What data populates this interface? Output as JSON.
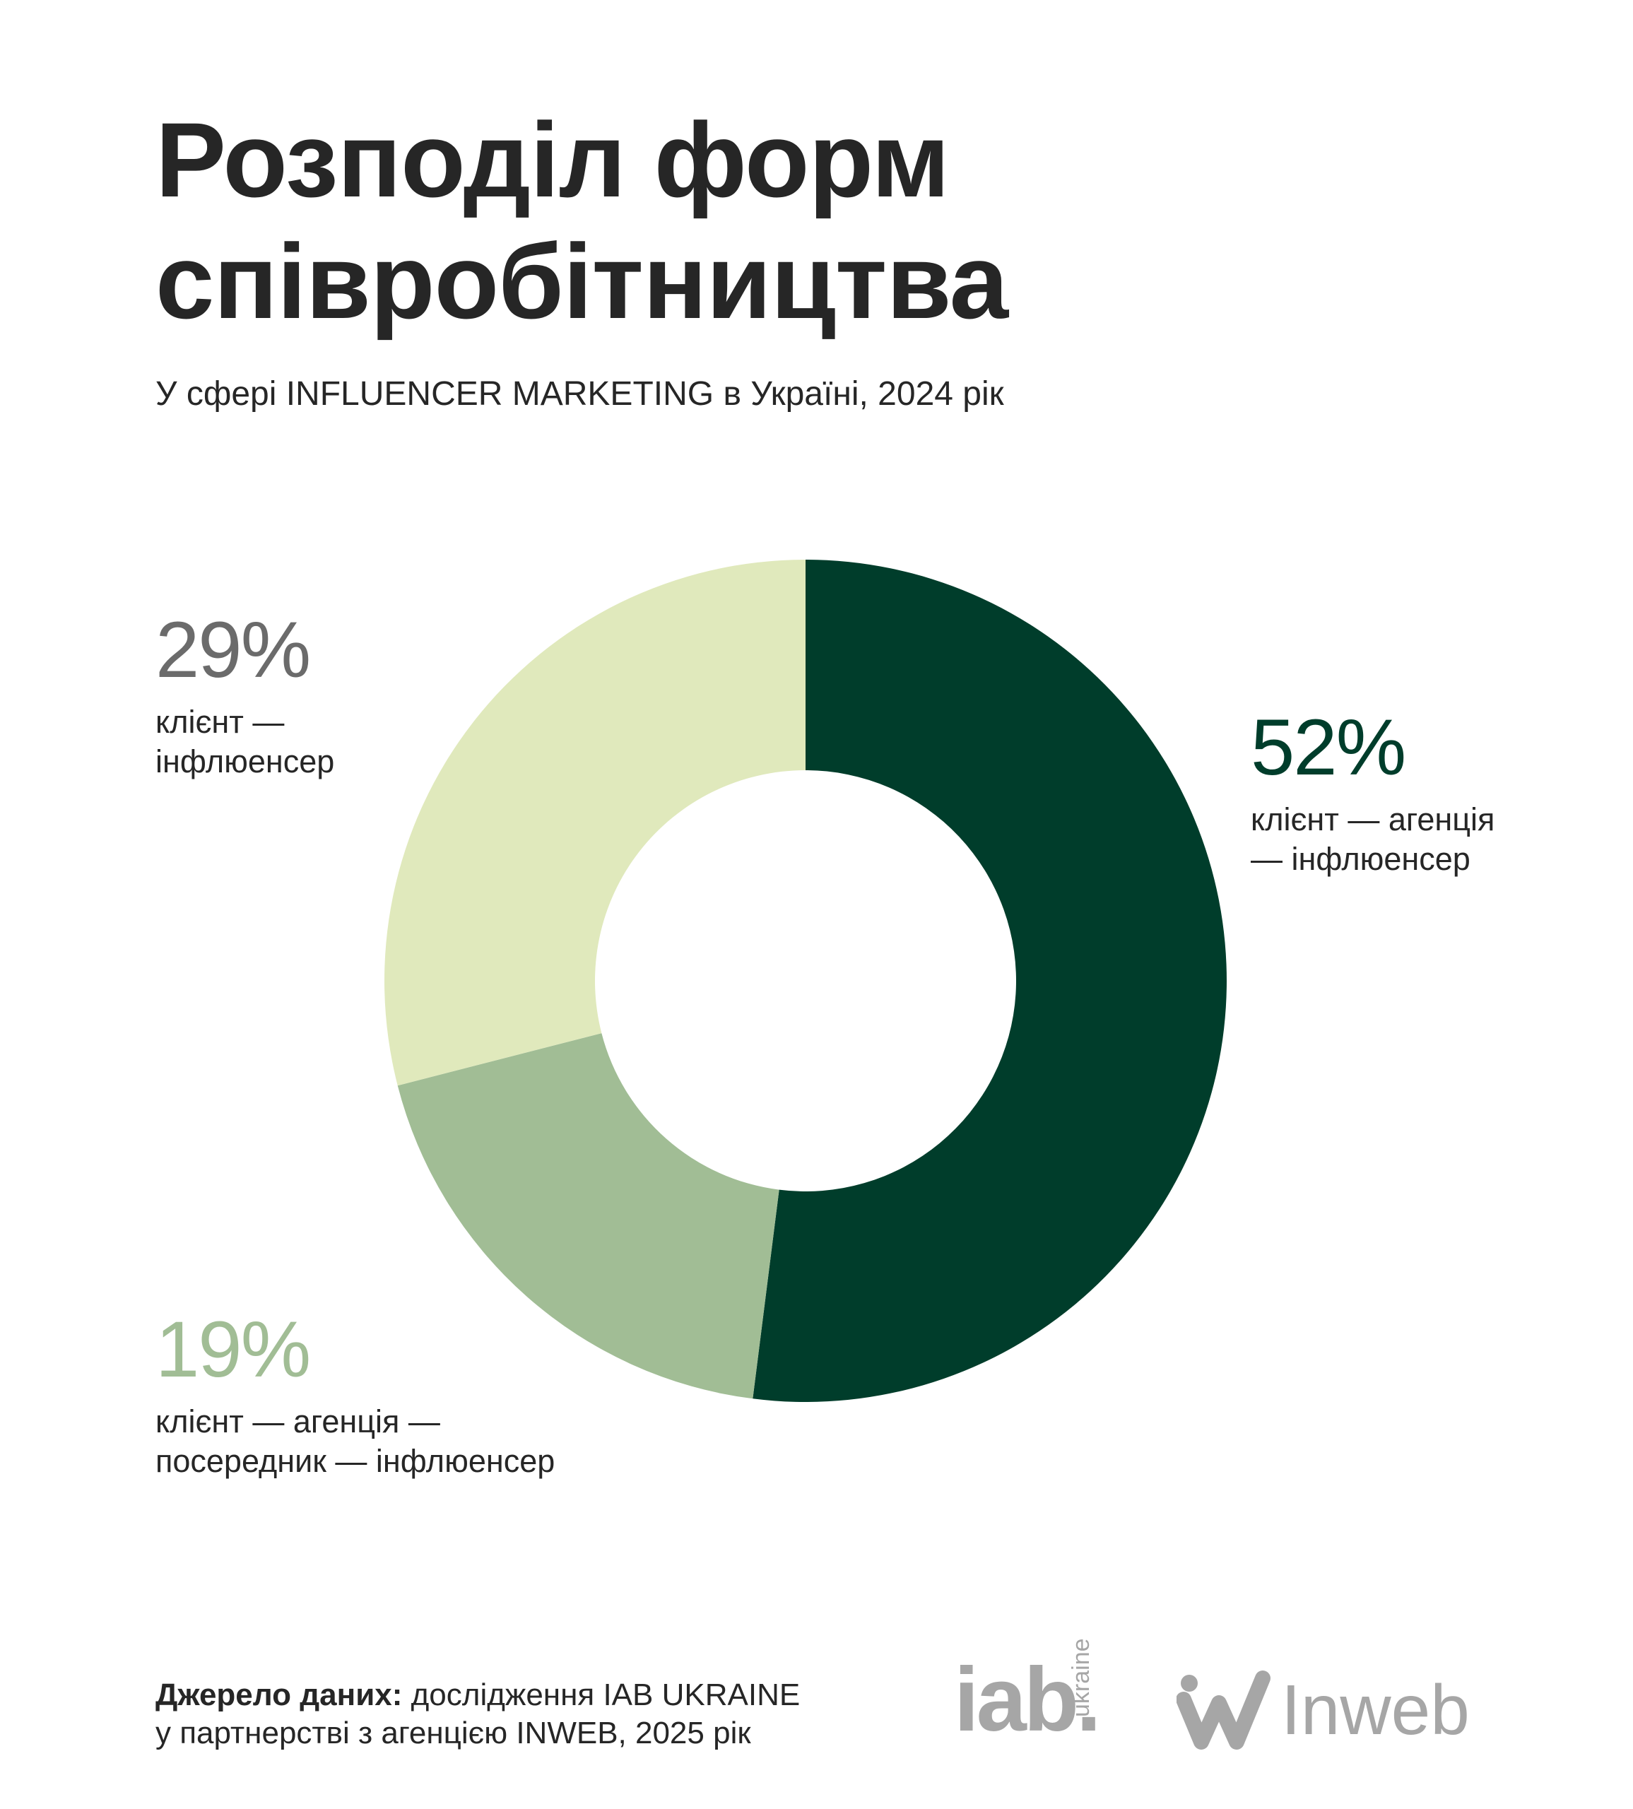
{
  "header": {
    "title_line1": "Розподіл форм",
    "title_line2": "співробітництва",
    "subtitle": "У сфері INFLUENCER MARKETING в Україні, 2024 рік"
  },
  "chart_data": {
    "type": "pie",
    "donut": true,
    "slices": [
      {
        "value": 52,
        "label": "52%",
        "desc_line1": "клієнт — агенція",
        "desc_line2": "— інфлюенсер",
        "color": "#003d2b",
        "label_color": "#003d2b"
      },
      {
        "value": 19,
        "label": "19%",
        "desc_line1": "клієнт — агенція —",
        "desc_line2": "посередник — інфлюенсер",
        "color": "#a1bd95",
        "label_color": "#a1bd95"
      },
      {
        "value": 29,
        "label": "29%",
        "desc_line1": "клієнт —",
        "desc_line2": "інфлюенсер",
        "color": "#e0e9bc",
        "label_color": "#6b6b6b"
      }
    ]
  },
  "footer": {
    "source_label": "Джерело даних:",
    "source_text_line1": " дослідження IAB UKRAINE",
    "source_text_line2": "у партнерстві з агенцією INWEB, 2025 рік"
  },
  "logos": {
    "iab": "iab.",
    "iab_sub": "ukraine",
    "inweb": "Inweb"
  }
}
